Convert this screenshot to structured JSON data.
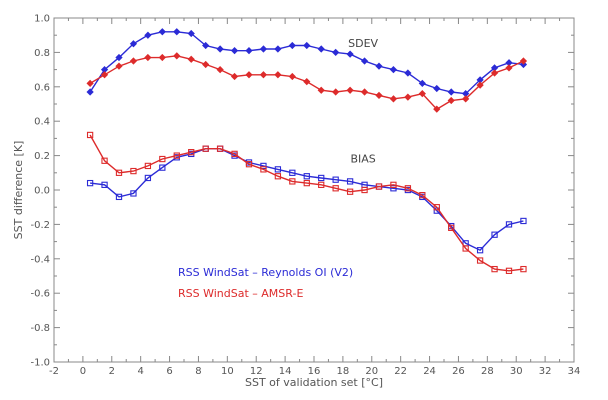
{
  "chart_data": {
    "type": "line",
    "xlabel": "SST of validation set [°C]",
    "ylabel": "SST difference [K]",
    "xlim": [
      -2,
      34
    ],
    "ylim": [
      -1.0,
      1.0
    ],
    "xticks": [
      -2,
      0,
      2,
      4,
      6,
      8,
      10,
      12,
      14,
      16,
      18,
      20,
      22,
      24,
      26,
      28,
      30,
      32,
      34
    ],
    "yticks": [
      -1.0,
      -0.8,
      -0.6,
      -0.4,
      -0.2,
      0.0,
      0.2,
      0.4,
      0.6,
      0.8,
      1.0
    ],
    "ytick_labels": [
      "-1.0",
      "-0.8",
      "-0.6",
      "-0.4",
      "-0.2",
      "0.0",
      "0.2",
      "0.4",
      "0.6",
      "0.8",
      "1.0"
    ],
    "grid": false,
    "legend_position": "lower-left",
    "annotations": [
      {
        "text": "SDEV",
        "x": 19.4,
        "y": 0.83
      },
      {
        "text": "BIAS",
        "x": 19.4,
        "y": 0.16
      }
    ],
    "series": [
      {
        "name": "RSS WindSat - Reynolds OI (V2)",
        "metric": "SDEV",
        "color": "#2b2bd6",
        "marker": "diamond",
        "x": [
          0.5,
          1.5,
          2.5,
          3.5,
          4.5,
          5.5,
          6.5,
          7.5,
          8.5,
          9.5,
          10.5,
          11.5,
          12.5,
          13.5,
          14.5,
          15.5,
          16.5,
          17.5,
          18.5,
          19.5,
          20.5,
          21.5,
          22.5,
          23.5,
          24.5,
          25.5,
          26.5,
          27.5,
          28.5,
          29.5,
          30.5
        ],
        "values": [
          0.57,
          0.7,
          0.77,
          0.85,
          0.9,
          0.92,
          0.92,
          0.91,
          0.84,
          0.82,
          0.81,
          0.81,
          0.82,
          0.82,
          0.84,
          0.84,
          0.82,
          0.8,
          0.79,
          0.75,
          0.72,
          0.7,
          0.68,
          0.62,
          0.59,
          0.57,
          0.56,
          0.64,
          0.71,
          0.74,
          0.73
        ]
      },
      {
        "name": "RSS WindSat - AMSR-E",
        "metric": "SDEV",
        "color": "#dd2b2b",
        "marker": "diamond",
        "x": [
          0.5,
          1.5,
          2.5,
          3.5,
          4.5,
          5.5,
          6.5,
          7.5,
          8.5,
          9.5,
          10.5,
          11.5,
          12.5,
          13.5,
          14.5,
          15.5,
          16.5,
          17.5,
          18.5,
          19.5,
          20.5,
          21.5,
          22.5,
          23.5,
          24.5,
          25.5,
          26.5,
          27.5,
          28.5,
          29.5,
          30.5
        ],
        "values": [
          0.62,
          0.67,
          0.72,
          0.75,
          0.77,
          0.77,
          0.78,
          0.76,
          0.73,
          0.7,
          0.66,
          0.67,
          0.67,
          0.67,
          0.66,
          0.63,
          0.58,
          0.57,
          0.58,
          0.57,
          0.55,
          0.53,
          0.54,
          0.56,
          0.47,
          0.52,
          0.53,
          0.61,
          0.68,
          0.71,
          0.75
        ]
      },
      {
        "name": "RSS WindSat - Reynolds OI (V2)",
        "metric": "BIAS",
        "color": "#2b2bd6",
        "marker": "square",
        "x": [
          0.5,
          1.5,
          2.5,
          3.5,
          4.5,
          5.5,
          6.5,
          7.5,
          8.5,
          9.5,
          10.5,
          11.5,
          12.5,
          13.5,
          14.5,
          15.5,
          16.5,
          17.5,
          18.5,
          19.5,
          20.5,
          21.5,
          22.5,
          23.5,
          24.5,
          25.5,
          26.5,
          27.5,
          28.5,
          29.5,
          30.5
        ],
        "values": [
          0.04,
          0.03,
          -0.04,
          -0.02,
          0.07,
          0.13,
          0.19,
          0.21,
          0.24,
          0.24,
          0.2,
          0.16,
          0.14,
          0.12,
          0.1,
          0.08,
          0.07,
          0.06,
          0.05,
          0.03,
          0.02,
          0.01,
          0.0,
          -0.04,
          -0.12,
          -0.21,
          -0.31,
          -0.35,
          -0.26,
          -0.2,
          -0.18
        ]
      },
      {
        "name": "RSS WindSat - AMSR-E",
        "metric": "BIAS",
        "color": "#dd2b2b",
        "marker": "square",
        "x": [
          0.5,
          1.5,
          2.5,
          3.5,
          4.5,
          5.5,
          6.5,
          7.5,
          8.5,
          9.5,
          10.5,
          11.5,
          12.5,
          13.5,
          14.5,
          15.5,
          16.5,
          17.5,
          18.5,
          19.5,
          20.5,
          21.5,
          22.5,
          23.5,
          24.5,
          25.5,
          26.5,
          27.5,
          28.5,
          29.5,
          30.5
        ],
        "values": [
          0.32,
          0.17,
          0.1,
          0.11,
          0.14,
          0.18,
          0.2,
          0.22,
          0.24,
          0.24,
          0.21,
          0.15,
          0.12,
          0.08,
          0.05,
          0.04,
          0.03,
          0.01,
          -0.01,
          0.0,
          0.02,
          0.03,
          0.01,
          -0.03,
          -0.1,
          -0.22,
          -0.34,
          -0.41,
          -0.46,
          -0.47,
          -0.46
        ]
      }
    ],
    "legend": [
      {
        "text": "RSS WindSat – Reynolds OI (V2)",
        "color": "#2b2bd6"
      },
      {
        "text": "RSS WindSat – AMSR-E",
        "color": "#dd2b2b"
      }
    ]
  }
}
